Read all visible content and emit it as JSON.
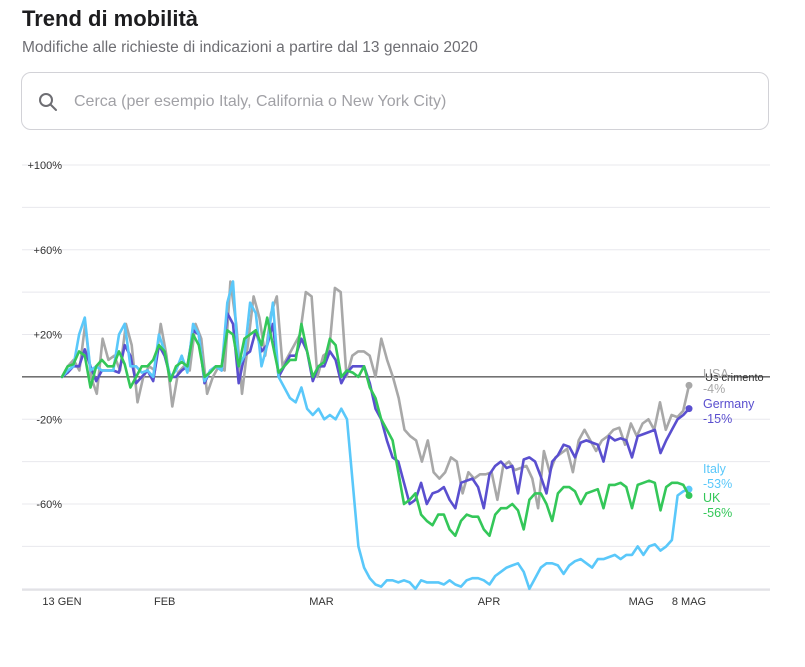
{
  "header": {
    "title": "Trend di mobilità",
    "subtitle": "Modifiche alle richieste di indicazioni a partire dal 13 gennaio 2020"
  },
  "search": {
    "placeholder": "Cerca (per esempio Italy, California o New York City)",
    "icon": "search-icon"
  },
  "chart_data": {
    "type": "line",
    "y_ticks": [
      "+100%",
      "+60%",
      "+20%",
      "-20%",
      "-60%"
    ],
    "y_tick_values": [
      100,
      60,
      20,
      -20,
      -60
    ],
    "ylim": [
      -100,
      100
    ],
    "baseline_label": "Us crimento",
    "x_ticks": [
      {
        "label": "13 GEN",
        "date": "2020-01-13"
      },
      {
        "label": "FEB",
        "date": "2020-02-01"
      },
      {
        "label": "MAR",
        "date": "2020-03-01"
      },
      {
        "label": "APR",
        "date": "2020-04-01"
      },
      {
        "label": "MAG",
        "date": "2020-05-01"
      },
      {
        "label": "8 MAG",
        "date": "2020-05-08"
      }
    ],
    "x_start": "2020-01-13",
    "x_end": "2020-05-08",
    "series": [
      {
        "name": "USA",
        "end_label": "-4%",
        "color": "#a8a8a8",
        "values": [
          0,
          5,
          8,
          3,
          25,
          0,
          -8,
          18,
          8,
          10,
          3,
          25,
          15,
          -12,
          0,
          5,
          3,
          25,
          10,
          -14,
          2,
          5,
          3,
          25,
          18,
          -8,
          0,
          5,
          3,
          45,
          25,
          -8,
          15,
          38,
          28,
          10,
          30,
          38,
          5,
          10,
          15,
          20,
          40,
          38,
          0,
          10,
          12,
          42,
          40,
          0,
          10,
          12,
          12,
          10,
          0,
          18,
          8,
          0,
          -10,
          -25,
          -28,
          -30,
          -40,
          -30,
          -45,
          -48,
          -45,
          -38,
          -40,
          -55,
          -45,
          -48,
          -46,
          -46,
          -45,
          -58,
          -42,
          -40,
          -44,
          -43,
          -42,
          -48,
          -62,
          -35,
          -45,
          -38,
          -36,
          -34,
          -45,
          -30,
          -25,
          -30,
          -35,
          -30,
          -28,
          -25,
          -24,
          -32,
          -22,
          -28,
          -22,
          -20,
          -25,
          -12,
          -25,
          -18,
          -19,
          -16,
          -4
        ]
      },
      {
        "name": "Germany",
        "end_label": "-15%",
        "color": "#5a4fcf",
        "values": [
          0,
          2,
          5,
          5,
          13,
          5,
          -2,
          3,
          3,
          3,
          2,
          15,
          10,
          -3,
          0,
          3,
          -2,
          15,
          10,
          0,
          0,
          3,
          5,
          22,
          20,
          -3,
          3,
          5,
          3,
          30,
          25,
          -3,
          10,
          12,
          22,
          12,
          15,
          25,
          0,
          5,
          10,
          10,
          18,
          12,
          -2,
          5,
          5,
          12,
          8,
          -3,
          2,
          5,
          5,
          5,
          -3,
          -15,
          -20,
          -30,
          -38,
          -40,
          -50,
          -60,
          -58,
          -50,
          -60,
          -55,
          -54,
          -52,
          -58,
          -62,
          -50,
          -49,
          -48,
          -52,
          -62,
          -46,
          -42,
          -40,
          -43,
          -42,
          -55,
          -39,
          -38,
          -40,
          -47,
          -55,
          -40,
          -37,
          -32,
          -33,
          -38,
          -31,
          -30,
          -31,
          -32,
          -40,
          -28,
          -30,
          -29,
          -30,
          -38,
          -28,
          -27,
          -26,
          -25,
          -36,
          -30,
          -25,
          -20,
          -18,
          -15
        ]
      },
      {
        "name": "Italy",
        "end_label": "-53%",
        "color": "#5ac8fa",
        "values": [
          0,
          3,
          5,
          20,
          28,
          3,
          5,
          3,
          3,
          3,
          20,
          25,
          5,
          5,
          2,
          3,
          0,
          20,
          12,
          0,
          3,
          10,
          2,
          25,
          20,
          -2,
          3,
          5,
          3,
          35,
          45,
          5,
          10,
          35,
          30,
          5,
          15,
          35,
          0,
          -5,
          -10,
          -12,
          -5,
          -15,
          -18,
          -15,
          -20,
          -18,
          -20,
          -15,
          -20,
          -50,
          -80,
          -90,
          -95,
          -98,
          -99,
          -96,
          -96,
          -97,
          -96,
          -97,
          -100,
          -96,
          -97,
          -97,
          -97,
          -98,
          -96,
          -98,
          -99,
          -96,
          -95,
          -95,
          -96,
          -98,
          -94,
          -92,
          -90,
          -89,
          -88,
          -92,
          -100,
          -95,
          -90,
          -88,
          -88,
          -89,
          -93,
          -89,
          -87,
          -86,
          -88,
          -90,
          -86,
          -86,
          -85,
          -84,
          -86,
          -84,
          -84,
          -80,
          -84,
          -80,
          -79,
          -82,
          -80,
          -77,
          -56,
          -54,
          -53
        ]
      },
      {
        "name": "UK",
        "end_label": "-56%",
        "color": "#34c759",
        "values": [
          0,
          5,
          6,
          12,
          10,
          -5,
          5,
          8,
          5,
          5,
          12,
          6,
          -5,
          0,
          5,
          5,
          8,
          15,
          12,
          -2,
          5,
          7,
          5,
          20,
          15,
          0,
          2,
          5,
          5,
          22,
          20,
          5,
          18,
          20,
          22,
          15,
          28,
          15,
          2,
          5,
          8,
          8,
          25,
          12,
          0,
          5,
          7,
          18,
          15,
          0,
          3,
          2,
          0,
          5,
          -5,
          -10,
          -20,
          -25,
          -30,
          -45,
          -60,
          -58,
          -55,
          -65,
          -68,
          -70,
          -65,
          -65,
          -72,
          -75,
          -68,
          -65,
          -66,
          -66,
          -72,
          -75,
          -65,
          -62,
          -62,
          -60,
          -63,
          -72,
          -58,
          -55,
          -55,
          -60,
          -68,
          -55,
          -52,
          -52,
          -54,
          -60,
          -55,
          -54,
          -53,
          -62,
          -51,
          -51,
          -50,
          -52,
          -62,
          -51,
          -50,
          -49,
          -50,
          -63,
          -52,
          -50,
          -50,
          -51,
          -56
        ]
      }
    ]
  }
}
